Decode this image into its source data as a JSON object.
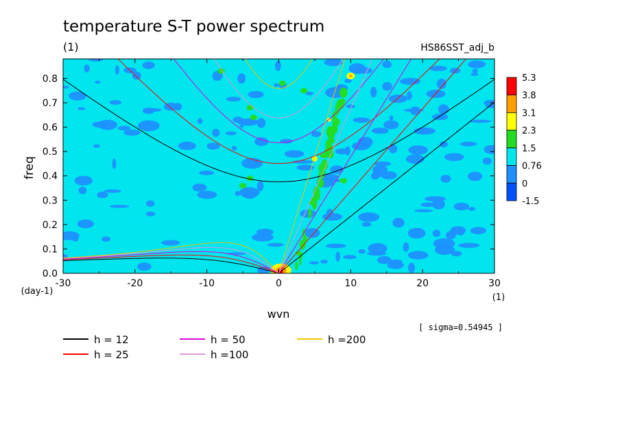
{
  "chart_data": {
    "type": "heatmap",
    "title": "temperature S-T power spectrum",
    "subtitle": "(1)",
    "dataset": "HS86SST_adj_b",
    "xlabel": "wvn",
    "x_unit": "(1)",
    "ylabel": "freq",
    "y_unit": "(day-1)",
    "xlim": [
      -30,
      30
    ],
    "ylim": [
      0,
      0.88
    ],
    "x_ticks": [
      -30,
      -20,
      -10,
      0,
      10,
      20,
      30
    ],
    "x_tick_labels": [
      "-30",
      "-20",
      "-10",
      "0",
      "10",
      "20",
      "30"
    ],
    "y_ticks": [
      0,
      0.1,
      0.2,
      0.3,
      0.4,
      0.5,
      0.6,
      0.7,
      0.8
    ],
    "y_tick_labels": [
      "0.0",
      "0.1",
      "0.2",
      "0.3",
      "0.4",
      "0.5",
      "0.6",
      "0.7",
      "0.8"
    ],
    "sigma_note": "[ sigma=0.54945 ]",
    "colorbar": {
      "labels": [
        "5.3",
        "3.8",
        "3.1",
        "2.3",
        "1.5",
        "0.76",
        "0",
        "-1.5"
      ],
      "colors": [
        "#ff0000",
        "#ffa000",
        "#ffff00",
        "#22dd22",
        "#00e5ee",
        "#00e5ee",
        "#1e90ff",
        "#0050ff"
      ],
      "background_level_color": "#00e5ee",
      "low_level_color": "#1e90ff"
    },
    "dispersion_curves": [
      {
        "label": "h = 12",
        "h": 12,
        "color": "#000000"
      },
      {
        "label": "h = 25",
        "h": 25,
        "color": "#ff0000"
      },
      {
        "label": "h = 50",
        "h": 50,
        "color": "#dd00dd"
      },
      {
        "label": "h =100",
        "h": 100,
        "color": "#dd99dd"
      },
      {
        "label": "h =200",
        "h": 200,
        "color": "#e8c800"
      }
    ]
  }
}
